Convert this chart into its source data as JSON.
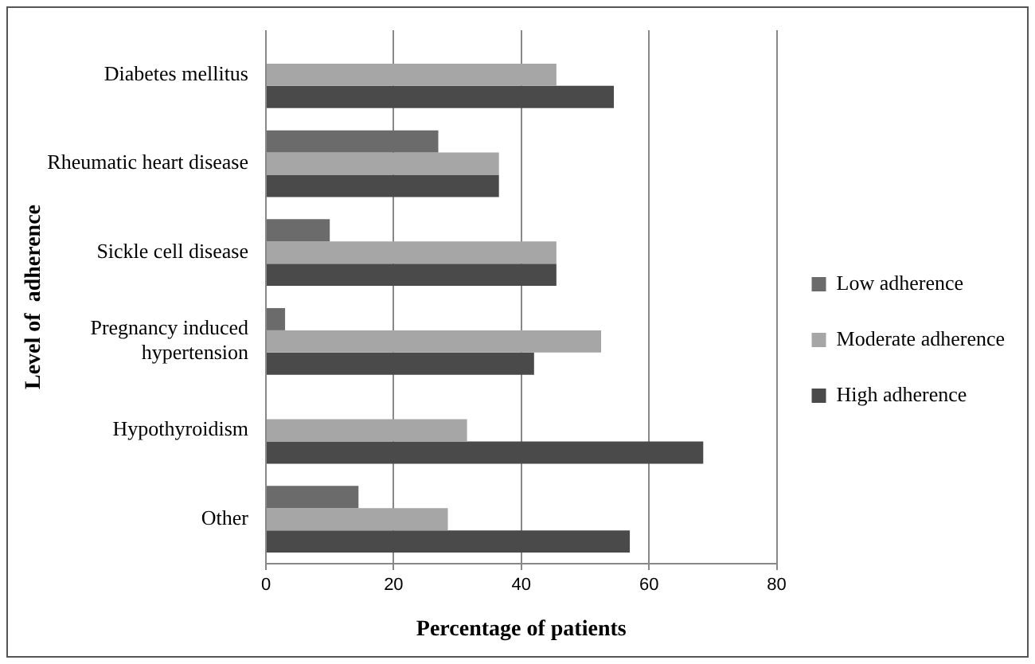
{
  "chart_data": {
    "type": "bar",
    "orientation": "horizontal",
    "xlabel": "Percentage of patients",
    "ylabel": "Level of  adherence",
    "categories": [
      "Diabetes mellitus",
      "Rheumatic heart disease",
      "Sickle cell disease",
      "Pregnancy induced hypertension",
      "Hypothyroidism",
      "Other"
    ],
    "series": [
      {
        "name": "Low adherence",
        "color": "#6b6b6b",
        "values": [
          0,
          27,
          10,
          3,
          0,
          14.5
        ]
      },
      {
        "name": "Moderate adherence",
        "color": "#a6a6a6",
        "values": [
          45.5,
          36.5,
          45.5,
          52.5,
          31.5,
          28.5
        ]
      },
      {
        "name": "High adherence",
        "color": "#4a4a4a",
        "values": [
          54.5,
          36.5,
          45.5,
          42,
          68.5,
          57
        ]
      }
    ],
    "xlim": [
      0,
      80
    ],
    "xticks": [
      0,
      20,
      40,
      60,
      80
    ],
    "grid": "x",
    "legend": "right"
  }
}
